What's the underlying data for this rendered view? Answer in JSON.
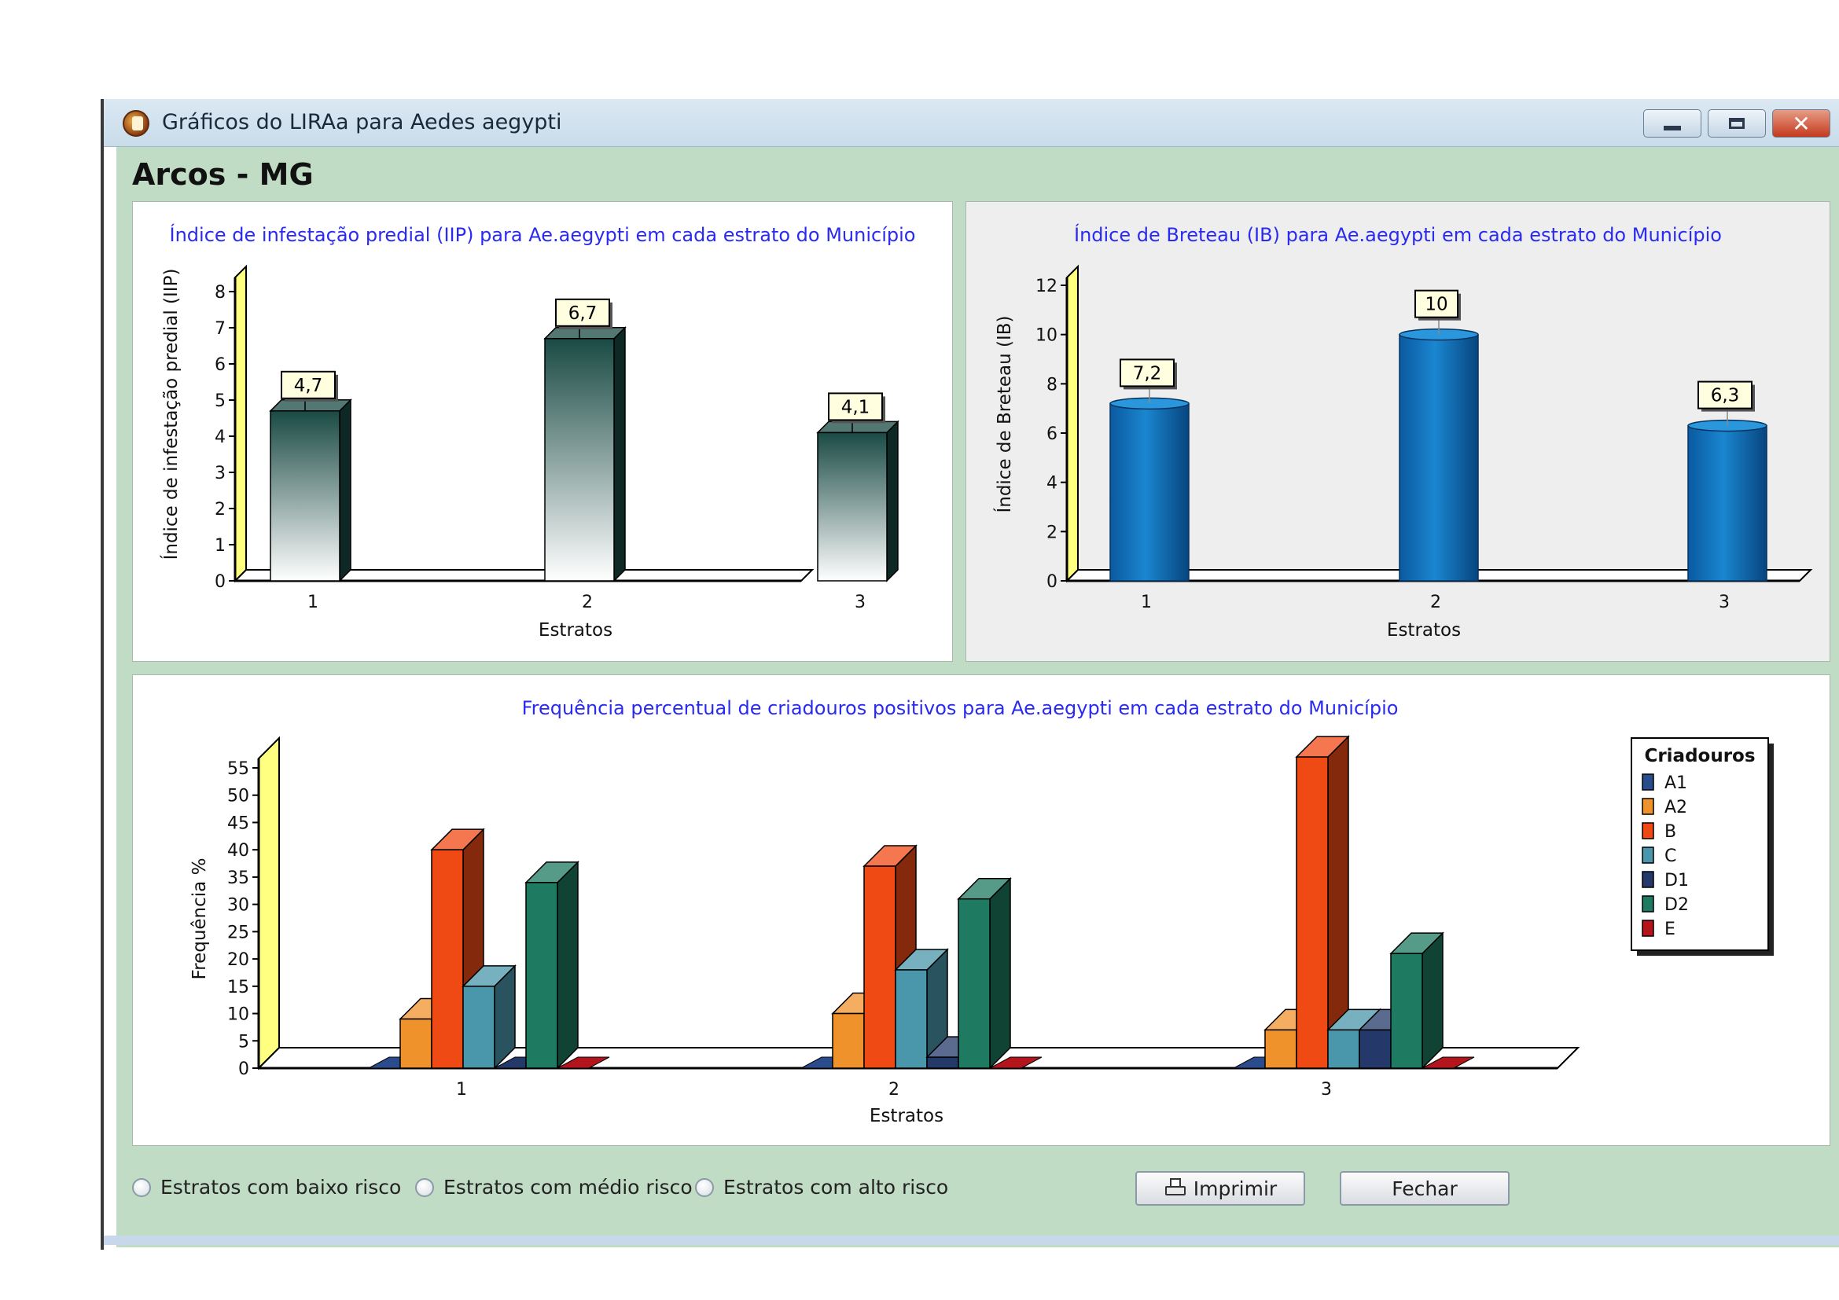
{
  "window": {
    "title": "Gráficos do LIRAa para Aedes aegypti",
    "heading": "Arcos - MG",
    "minimize_icon": "minimize-icon",
    "maximize_icon": "maximize-icon",
    "close_icon": "close-icon",
    "close_glyph": "✕"
  },
  "controls": {
    "radio_low": "Estratos com baixo risco",
    "radio_mid": "Estratos com médio risco",
    "radio_high": "Estratos com alto risco",
    "print_label": "Imprimir",
    "print_icon": "printer-icon",
    "close_label": "Fechar"
  },
  "chart_data": [
    {
      "type": "bar",
      "title": "Índice de infestação predial (IIP) para Ae.aegypti em cada estrato do Município",
      "xlabel": "Estratos",
      "ylabel": "Índice de infestação predial (IIP)",
      "categories": [
        "1",
        "2",
        "3"
      ],
      "values": [
        4.7,
        6.7,
        4.1
      ],
      "value_labels": [
        "4,7",
        "6,7",
        "4,1"
      ],
      "yticks": [
        "0",
        "1",
        "2",
        "3",
        "4",
        "5",
        "6",
        "7",
        "8"
      ],
      "ylim": [
        0,
        8
      ],
      "bar_color": "#1a4a44",
      "title_color": "#2a2af0"
    },
    {
      "type": "bar",
      "title": "Índice de Breteau (IB) para Ae.aegypti em cada estrato do Município",
      "xlabel": "Estratos",
      "ylabel": "Índice de Breteau (IB)",
      "categories": [
        "1",
        "2",
        "3"
      ],
      "values": [
        7.2,
        10,
        6.3
      ],
      "value_labels": [
        "7,2",
        "10",
        "6,3"
      ],
      "yticks": [
        "0",
        "2",
        "4",
        "6",
        "8",
        "10",
        "12"
      ],
      "ylim": [
        0,
        12
      ],
      "bar_color": "#0a68b4",
      "title_color": "#2a2af0"
    },
    {
      "type": "bar",
      "title": "Frequência percentual de criadouros positivos para Ae.aegypti em cada estrato do Município",
      "xlabel": "Estratos",
      "ylabel": "Frequência %",
      "categories": [
        "1",
        "2",
        "3"
      ],
      "yticks": [
        "0",
        "5",
        "10",
        "15",
        "20",
        "25",
        "30",
        "35",
        "40",
        "45",
        "50",
        "55"
      ],
      "ylim": [
        0,
        55
      ],
      "legend_title": "Criadouros",
      "legend_position": "right",
      "title_color": "#2a2af0",
      "series": [
        {
          "name": "A1",
          "color": "#2a4c8c",
          "values": [
            0,
            0,
            0
          ]
        },
        {
          "name": "A2",
          "color": "#f0922c",
          "values": [
            9,
            10,
            7
          ]
        },
        {
          "name": "B",
          "color": "#f04a14",
          "values": [
            40,
            37,
            57
          ]
        },
        {
          "name": "C",
          "color": "#4a96aa",
          "values": [
            15,
            18,
            7
          ]
        },
        {
          "name": "D1",
          "color": "#24386a",
          "values": [
            0,
            2,
            7
          ]
        },
        {
          "name": "D2",
          "color": "#1e7a60",
          "values": [
            34,
            31,
            21
          ]
        },
        {
          "name": "E",
          "color": "#b4141c",
          "values": [
            0,
            0,
            0
          ]
        }
      ]
    }
  ]
}
